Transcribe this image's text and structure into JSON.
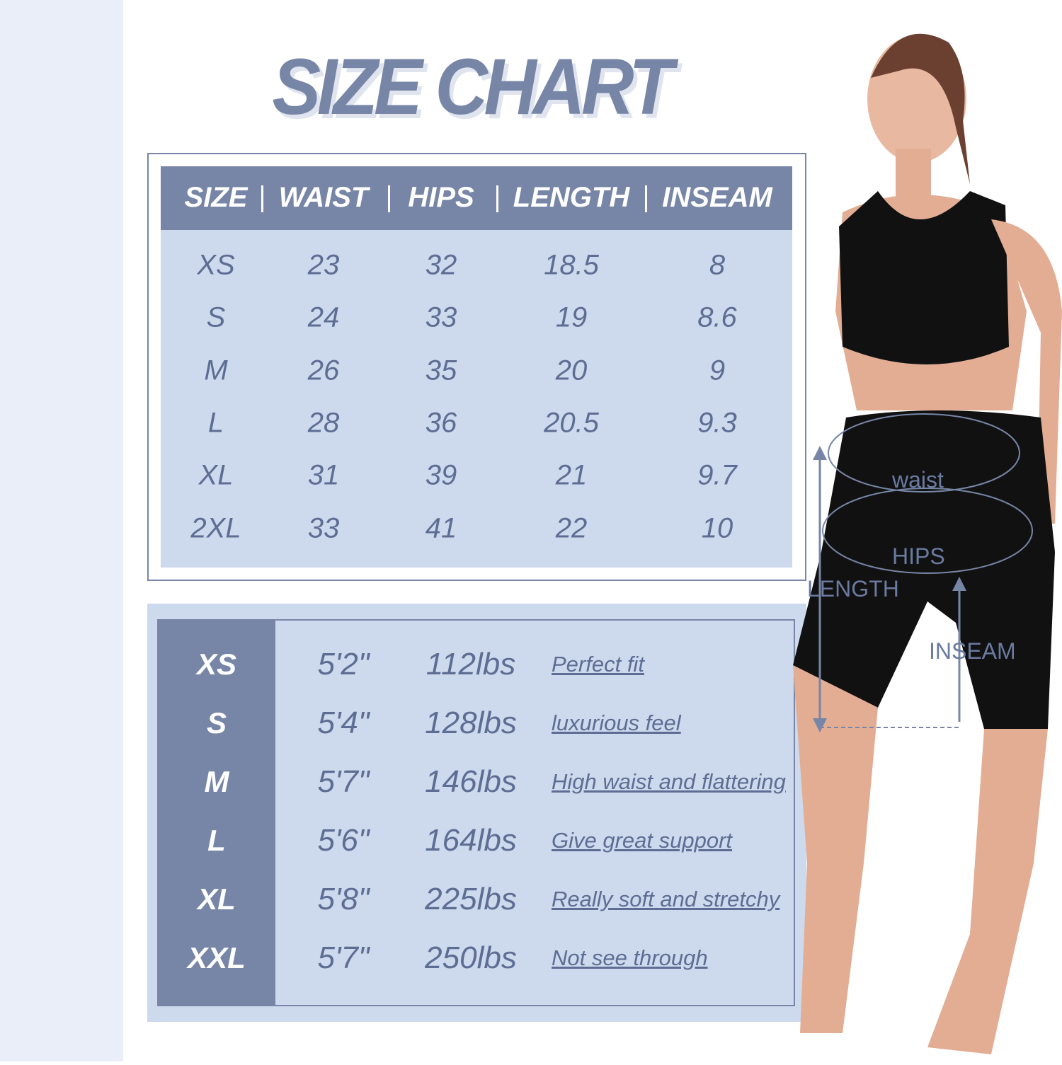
{
  "title": "SIZE CHART",
  "colors": {
    "accent": "#7786a6",
    "panel": "#cdd9ec",
    "text": "#5d6d93",
    "strip": "#e9eef8"
  },
  "measurements": {
    "headers": [
      "SIZE",
      "WAIST",
      "HIPS",
      "LENGTH",
      "INSEAM"
    ],
    "rows": [
      [
        "XS",
        "23",
        "32",
        "18.5",
        "8"
      ],
      [
        "S",
        "24",
        "33",
        "19",
        "8.6"
      ],
      [
        "M",
        "26",
        "35",
        "20",
        "9"
      ],
      [
        "L",
        "28",
        "36",
        "20.5",
        "9.3"
      ],
      [
        "XL",
        "31",
        "39",
        "21",
        "9.7"
      ],
      [
        "2XL",
        "33",
        "41",
        "22",
        "10"
      ]
    ]
  },
  "fit_guide": [
    {
      "size": "XS",
      "height": "5'2\"",
      "weight": "112lbs",
      "note": "Perfect fit"
    },
    {
      "size": "S",
      "height": "5'4\"",
      "weight": "128lbs",
      "note": "luxurious feel"
    },
    {
      "size": "M",
      "height": "5'7\"",
      "weight": "146lbs",
      "note": "High waist and flattering"
    },
    {
      "size": "L",
      "height": "5'6\"",
      "weight": "164lbs",
      "note": "Give great support"
    },
    {
      "size": "XL",
      "height": "5'8\"",
      "weight": "225lbs",
      "note": "Really soft and stretchy"
    },
    {
      "size": "XXL",
      "height": "5'7\"",
      "weight": "250lbs",
      "note": "Not see through"
    }
  ],
  "model_labels": {
    "waist": "waist",
    "hips": "HIPS",
    "length": "LENGTH",
    "inseam": "INSEAM"
  }
}
